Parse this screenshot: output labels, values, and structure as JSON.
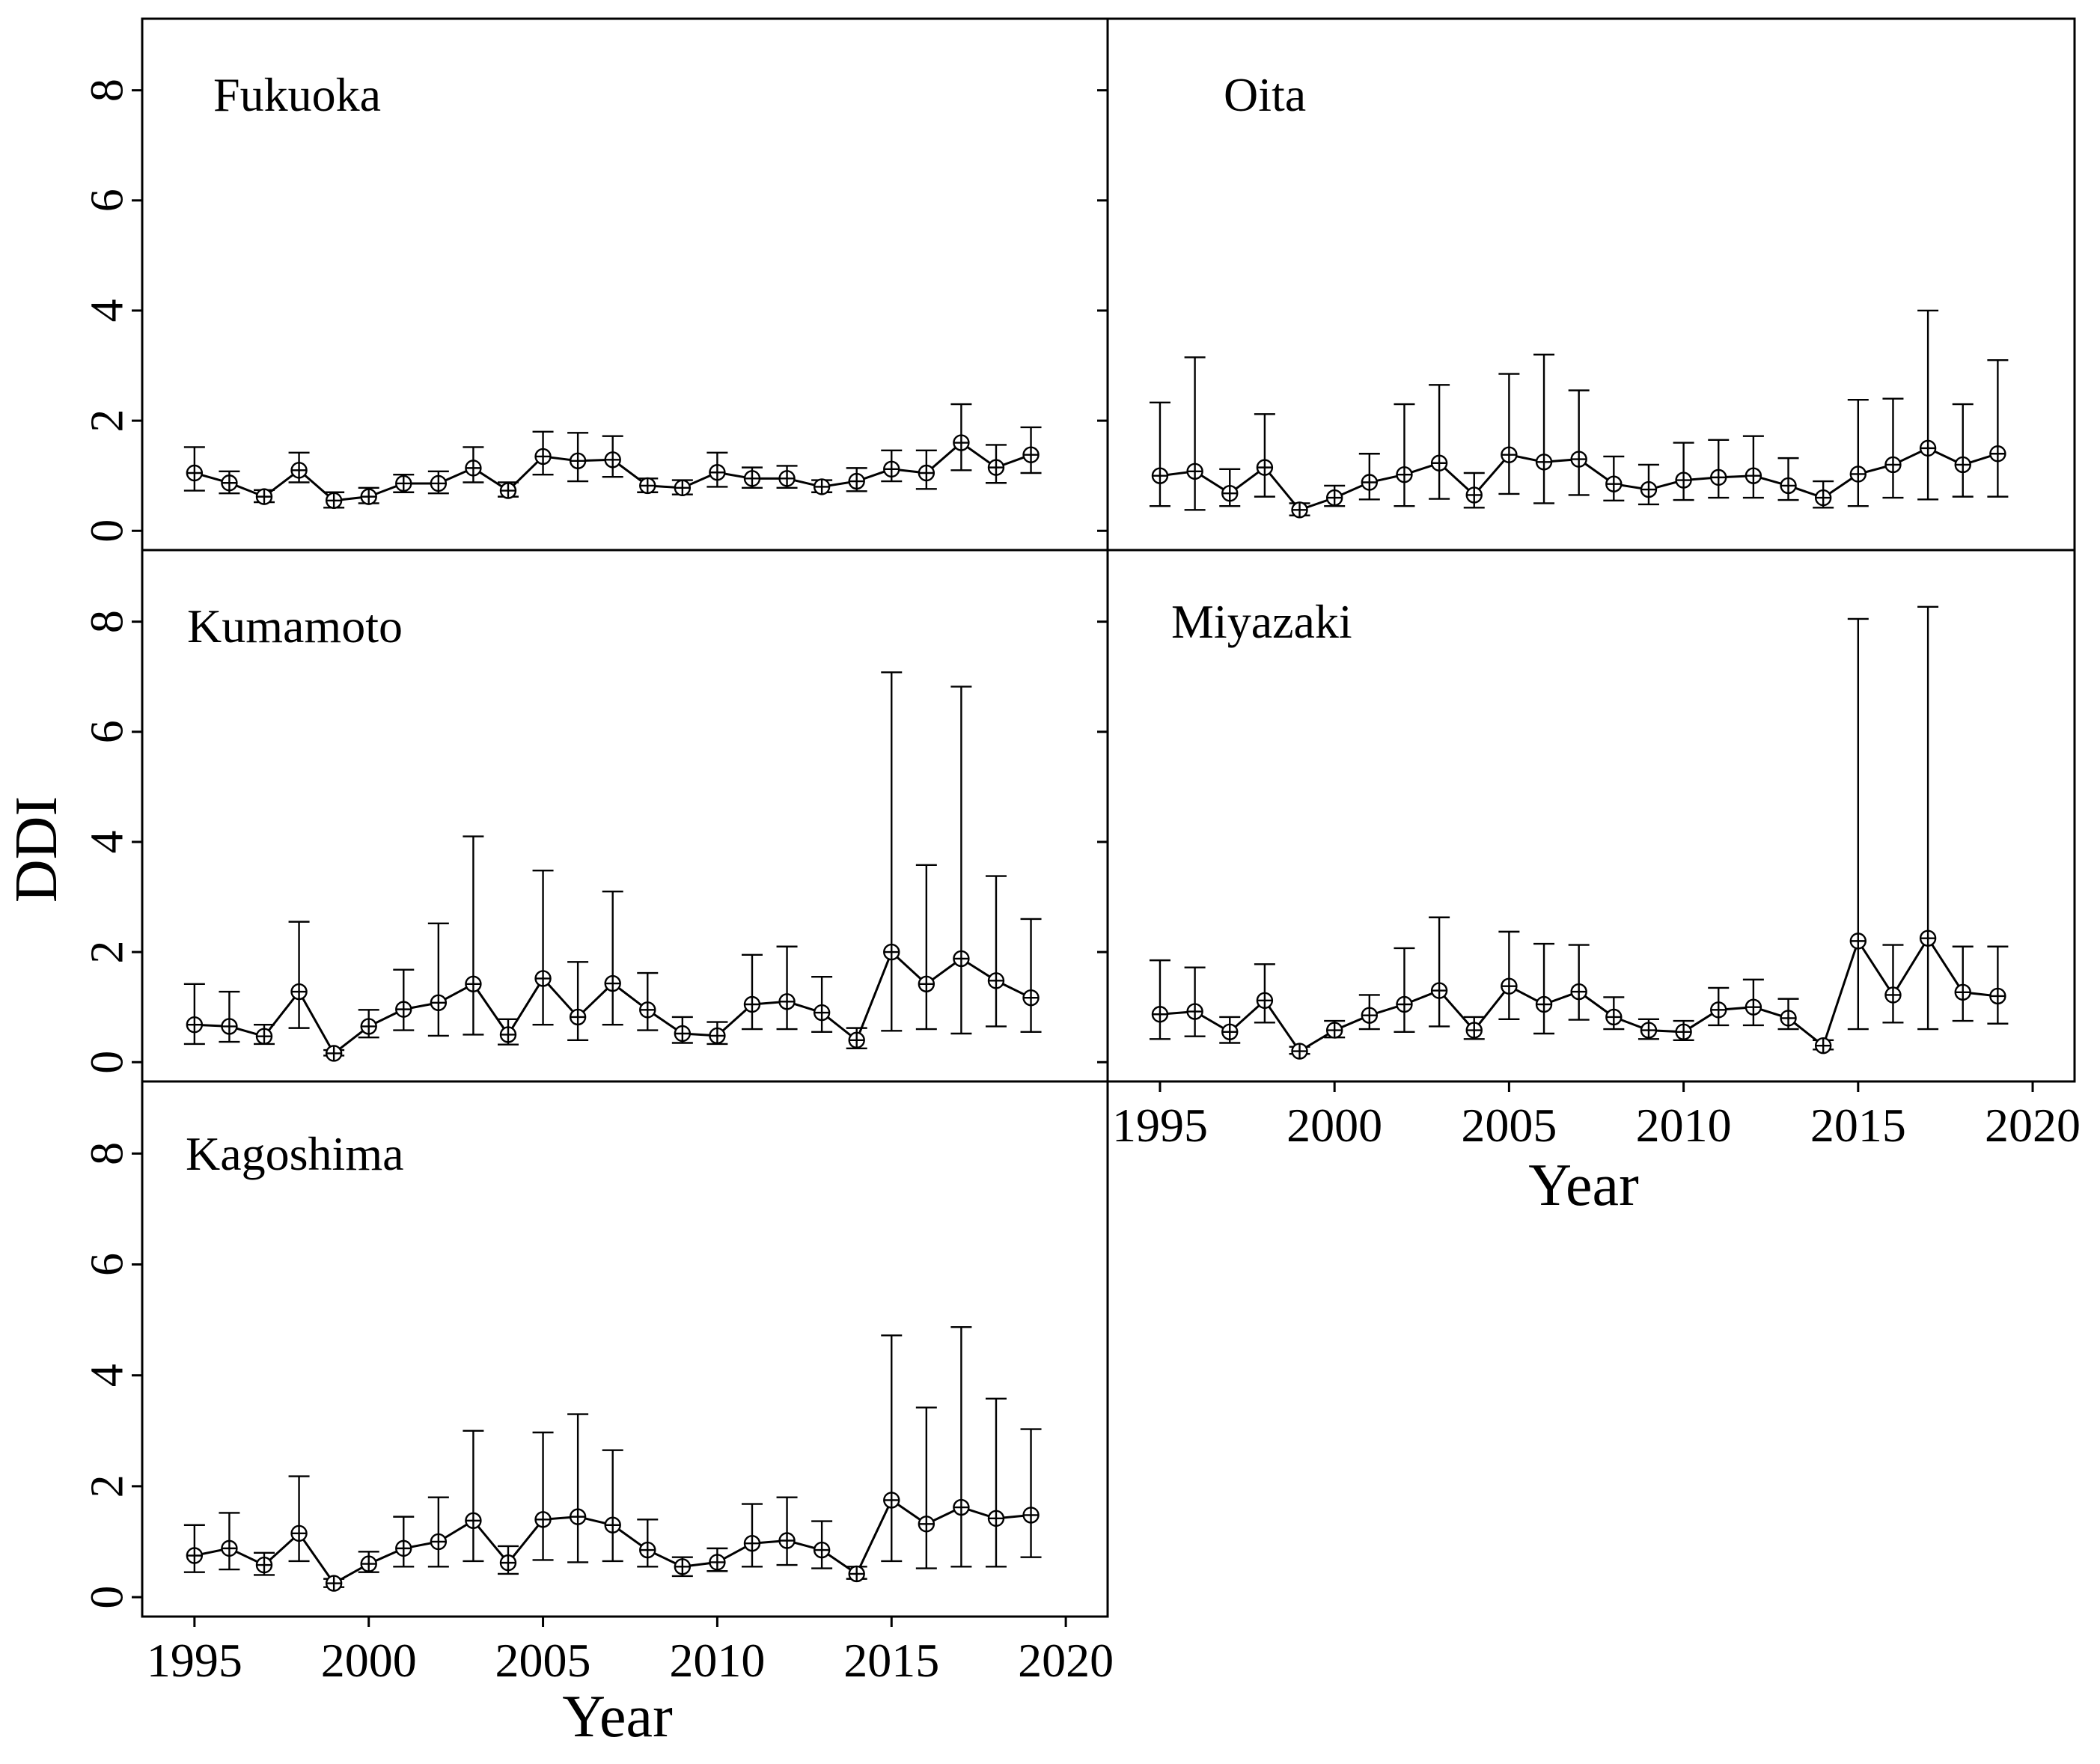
{
  "chart_data": {
    "type": "line",
    "y_axis_title": "DDI",
    "x_axis_title": "Year",
    "x": [
      1995,
      1996,
      1997,
      1998,
      1999,
      2000,
      2001,
      2002,
      2003,
      2004,
      2005,
      2006,
      2007,
      2008,
      2009,
      2010,
      2011,
      2012,
      2013,
      2014,
      2015,
      2016,
      2017,
      2018,
      2019
    ],
    "xticks": [
      "1995",
      "2000",
      "2005",
      "2010",
      "2015",
      "2020"
    ],
    "xlim": [
      1993.5,
      2021.2
    ],
    "yticks": [
      "0",
      "2",
      "4",
      "6",
      "8"
    ],
    "ylim": [
      -0.35,
      9.3
    ],
    "panels": [
      {
        "title": "Fukuoka",
        "values": [
          1.05,
          0.87,
          0.62,
          1.1,
          0.55,
          0.62,
          0.86,
          0.86,
          1.14,
          0.73,
          1.35,
          1.27,
          1.29,
          0.82,
          0.78,
          1.06,
          0.95,
          0.95,
          0.8,
          0.9,
          1.12,
          1.05,
          1.6,
          1.15,
          1.38
        ],
        "lower": [
          0.73,
          0.68,
          0.52,
          0.88,
          0.42,
          0.5,
          0.7,
          0.68,
          0.88,
          0.62,
          1.02,
          0.9,
          0.98,
          0.7,
          0.66,
          0.8,
          0.78,
          0.78,
          0.7,
          0.72,
          0.9,
          0.76,
          1.1,
          0.87,
          1.05
        ],
        "upper": [
          1.52,
          1.08,
          0.74,
          1.42,
          0.7,
          0.78,
          1.02,
          1.08,
          1.52,
          0.88,
          1.8,
          1.78,
          1.72,
          0.95,
          0.92,
          1.42,
          1.15,
          1.18,
          0.92,
          1.14,
          1.46,
          1.46,
          2.3,
          1.56,
          1.88
        ]
      },
      {
        "title": "Oita",
        "values": [
          1.0,
          1.08,
          0.68,
          1.15,
          0.38,
          0.6,
          0.88,
          1.02,
          1.23,
          0.65,
          1.38,
          1.25,
          1.3,
          0.85,
          0.75,
          0.92,
          0.97,
          1.0,
          0.82,
          0.6,
          1.03,
          1.2,
          1.5,
          1.2,
          1.4
        ],
        "lower": [
          0.45,
          0.38,
          0.45,
          0.62,
          0.28,
          0.45,
          0.57,
          0.45,
          0.58,
          0.42,
          0.67,
          0.5,
          0.65,
          0.55,
          0.48,
          0.56,
          0.6,
          0.6,
          0.56,
          0.42,
          0.45,
          0.6,
          0.57,
          0.62,
          0.62
        ],
        "upper": [
          2.33,
          3.15,
          1.12,
          2.12,
          0.5,
          0.82,
          1.4,
          2.3,
          2.65,
          1.05,
          2.85,
          3.2,
          2.55,
          1.35,
          1.2,
          1.6,
          1.65,
          1.72,
          1.32,
          0.9,
          2.38,
          2.4,
          4.0,
          2.3,
          3.1
        ]
      },
      {
        "title": "Kumamoto",
        "values": [
          0.68,
          0.65,
          0.47,
          1.28,
          0.16,
          0.65,
          0.96,
          1.08,
          1.42,
          0.5,
          1.52,
          0.82,
          1.43,
          0.95,
          0.52,
          0.48,
          1.05,
          1.1,
          0.9,
          0.4,
          2.0,
          1.42,
          1.88,
          1.48,
          1.17
        ],
        "lower": [
          0.33,
          0.37,
          0.33,
          0.62,
          0.12,
          0.45,
          0.58,
          0.48,
          0.5,
          0.32,
          0.68,
          0.4,
          0.68,
          0.58,
          0.35,
          0.33,
          0.6,
          0.6,
          0.55,
          0.25,
          0.57,
          0.6,
          0.52,
          0.65,
          0.55
        ],
        "upper": [
          1.42,
          1.28,
          0.68,
          2.55,
          0.22,
          0.95,
          1.68,
          2.52,
          4.1,
          0.78,
          3.48,
          1.82,
          3.1,
          1.62,
          0.82,
          0.73,
          1.95,
          2.1,
          1.55,
          0.62,
          7.08,
          3.58,
          6.82,
          3.38,
          2.6
        ]
      },
      {
        "title": "Miyazaki",
        "values": [
          0.87,
          0.92,
          0.55,
          1.12,
          0.2,
          0.58,
          0.85,
          1.05,
          1.3,
          0.58,
          1.38,
          1.05,
          1.28,
          0.82,
          0.58,
          0.55,
          0.95,
          1.0,
          0.8,
          0.3,
          2.2,
          1.22,
          2.25,
          1.27,
          1.2
        ],
        "lower": [
          0.42,
          0.47,
          0.35,
          0.72,
          0.15,
          0.45,
          0.6,
          0.55,
          0.65,
          0.42,
          0.78,
          0.52,
          0.77,
          0.6,
          0.42,
          0.4,
          0.67,
          0.67,
          0.6,
          0.23,
          0.6,
          0.72,
          0.6,
          0.75,
          0.7
        ],
        "upper": [
          1.85,
          1.72,
          0.82,
          1.78,
          0.28,
          0.75,
          1.22,
          2.07,
          2.63,
          0.82,
          2.37,
          2.15,
          2.13,
          1.18,
          0.78,
          0.75,
          1.35,
          1.5,
          1.15,
          0.4,
          8.05,
          2.13,
          8.27,
          2.1,
          2.1
        ]
      },
      {
        "title": "Kagoshima",
        "values": [
          0.75,
          0.88,
          0.58,
          1.15,
          0.25,
          0.6,
          0.88,
          1.0,
          1.38,
          0.62,
          1.4,
          1.45,
          1.3,
          0.85,
          0.55,
          0.63,
          0.97,
          1.02,
          0.85,
          0.42,
          1.75,
          1.32,
          1.62,
          1.42,
          1.48
        ],
        "lower": [
          0.45,
          0.5,
          0.4,
          0.65,
          0.18,
          0.45,
          0.55,
          0.55,
          0.65,
          0.42,
          0.67,
          0.63,
          0.65,
          0.55,
          0.38,
          0.47,
          0.55,
          0.58,
          0.52,
          0.33,
          0.65,
          0.52,
          0.55,
          0.55,
          0.72
        ],
        "upper": [
          1.3,
          1.52,
          0.8,
          2.18,
          0.33,
          0.82,
          1.45,
          1.8,
          3.0,
          0.92,
          2.97,
          3.3,
          2.65,
          1.4,
          0.72,
          0.88,
          1.68,
          1.8,
          1.37,
          0.55,
          4.72,
          3.42,
          4.87,
          3.58,
          3.03
        ]
      }
    ]
  }
}
